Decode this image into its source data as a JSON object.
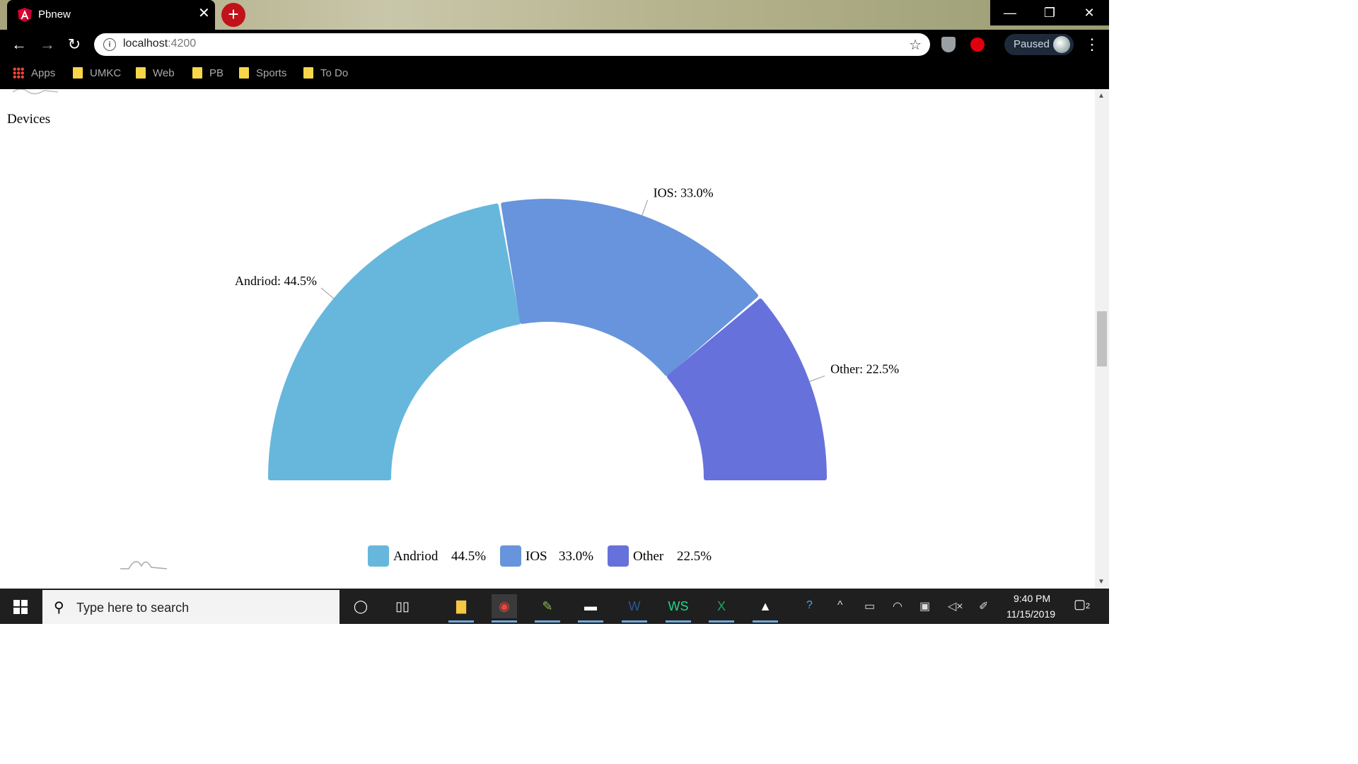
{
  "browser": {
    "tab_title": "Pbnew",
    "tab_close": "✕",
    "new_tab": "+",
    "window_controls": {
      "minimize": "—",
      "maximize": "❐",
      "close": "✕"
    },
    "url_host": "localhost",
    "url_port": ":4200",
    "profile_status": "Paused",
    "icons": [
      "angular-icon",
      "back-icon",
      "forward-icon",
      "reload-icon",
      "info-icon",
      "star-icon",
      "shield-extension-icon",
      "stop-extension-icon",
      "menu-icon"
    ]
  },
  "bookmarks": [
    {
      "label": "Apps",
      "icon": "apps-grid-icon"
    },
    {
      "label": "UMKC",
      "icon": "folder-icon"
    },
    {
      "label": "Web",
      "icon": "folder-icon"
    },
    {
      "label": "PB",
      "icon": "folder-icon"
    },
    {
      "label": "Sports",
      "icon": "folder-icon"
    },
    {
      "label": "To Do",
      "icon": "folder-icon"
    }
  ],
  "page": {
    "heading": "Devices"
  },
  "chart_data": {
    "type": "pie",
    "variant": "semi-donut",
    "categories": [
      "Andriod",
      "IOS",
      "Other"
    ],
    "values": [
      44.5,
      33.0,
      22.5
    ],
    "slice_labels": [
      "Andriod: 44.5%",
      "IOS: 33.0%",
      "Other: 22.5%"
    ],
    "legend_values": [
      "44.5%",
      "33.0%",
      "22.5%"
    ],
    "colors": [
      "#67b7dc",
      "#6794dc",
      "#6771dc"
    ],
    "legend_position": "bottom-center"
  },
  "taskbar": {
    "search_placeholder": "Type here to search",
    "time": "9:40 PM",
    "date": "11/15/2019",
    "notification_count": "2",
    "apps": [
      "cortana-icon",
      "task-view-icon",
      "file-explorer-icon",
      "chrome-icon",
      "notepad-icon",
      "terminal-icon",
      "word-icon",
      "webstorm-icon",
      "excel-icon",
      "photos-icon"
    ]
  }
}
